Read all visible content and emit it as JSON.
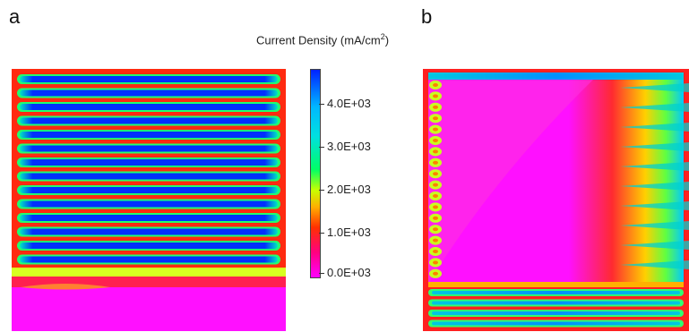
{
  "panels": {
    "left_label": "a",
    "right_label": "b"
  },
  "colorbar": {
    "title": "Current Density (mA/cm",
    "title_sup": "2",
    "title_close": ")",
    "ticks": [
      "4.0E+03",
      "3.0E+03",
      "2.0E+03",
      "1.0E+03",
      "0.0E+03"
    ],
    "colors": [
      "#ff00ff",
      "#ff0080",
      "#ff2000",
      "#ffb000",
      "#c8ff00",
      "#00ff66",
      "#00e0e0",
      "#00b8ff",
      "#0022ff"
    ]
  }
}
